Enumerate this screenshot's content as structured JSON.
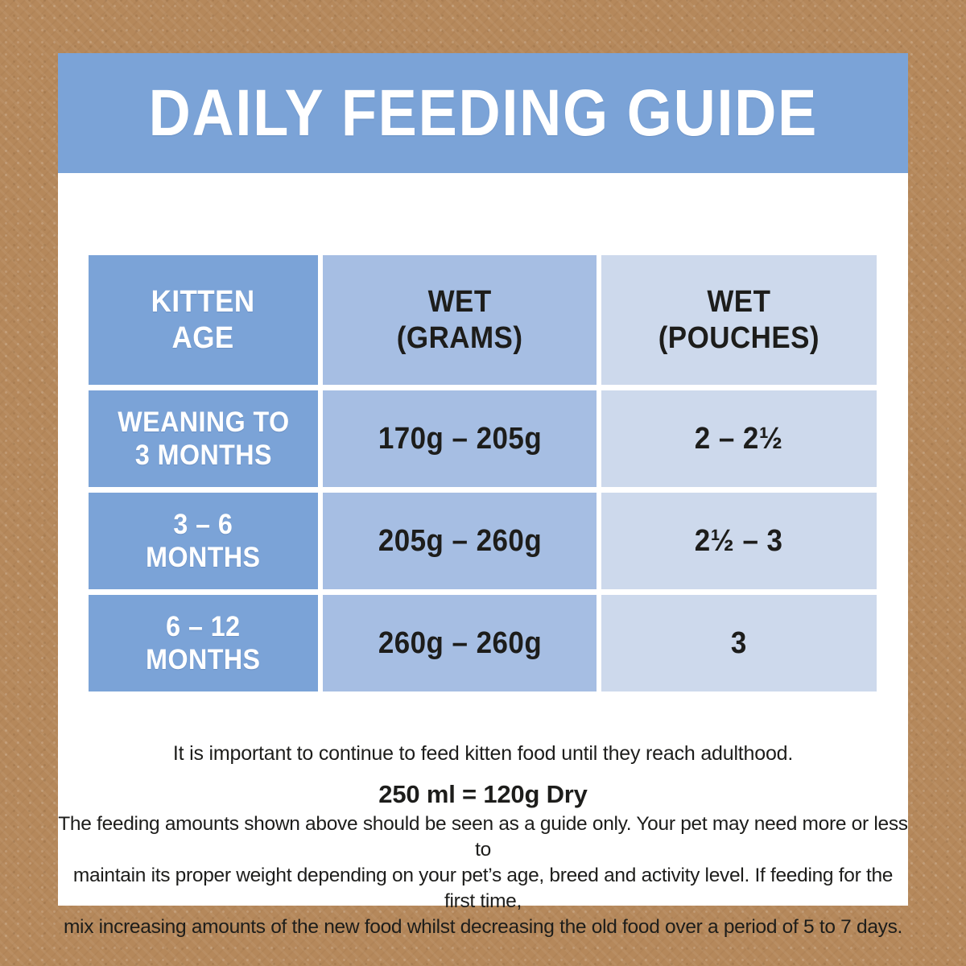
{
  "title": "DAILY FEEDING GUIDE",
  "colors": {
    "background_tan": "#b5885b",
    "card_white": "#ffffff",
    "banner_blue": "#7ba3d7",
    "age_column_blue": "#7ba3d7",
    "grams_column_blue": "#a6bee3",
    "pouches_column_blue": "#cdd9ec",
    "dark_text": "#1d1d1b",
    "light_text": "#ffffff"
  },
  "table": {
    "headers": {
      "age": "KITTEN\nAGE",
      "grams": "WET\n(GRAMS)",
      "pouches": "WET\n(POUCHES)"
    },
    "rows": [
      {
        "age": "WEANING TO\n3 MONTHS",
        "grams": "170g – 205g",
        "pouches": "2 – 2½"
      },
      {
        "age": "3 – 6\nMONTHS",
        "grams": "205g – 260g",
        "pouches": "2½ – 3"
      },
      {
        "age": "6 – 12\nMONTHS",
        "grams": "260g – 260g",
        "pouches": "3"
      }
    ]
  },
  "notes": {
    "important": "It is important to continue to feed kitten food until they reach adulthood.",
    "conversion": "250 ml = 120g Dry",
    "disclaimer": "The feeding amounts shown above should be seen as a guide only. Your pet may need more or less to\nmaintain its proper weight depending on your pet’s age, breed and activity level. If feeding for the first time,\nmix increasing amounts of the new food whilst decreasing the old food over a period of 5 to 7 days."
  }
}
